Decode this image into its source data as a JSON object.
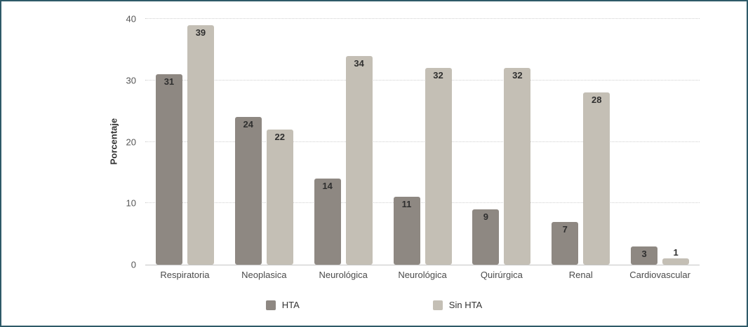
{
  "chart_data": {
    "type": "bar",
    "categories": [
      "Respiratoria",
      "Neoplasica",
      "Neurológica",
      "Neurológica",
      "Quirúrgica",
      "Renal",
      "Cardiovascular"
    ],
    "series": [
      {
        "name": "HTA",
        "color": "#8e8882",
        "values": [
          31,
          24,
          14,
          11,
          9,
          7,
          3
        ]
      },
      {
        "name": "Sin HTA",
        "color": "#c4bfb5",
        "values": [
          39,
          22,
          34,
          32,
          32,
          28,
          1
        ]
      }
    ],
    "title": "",
    "xlabel": "",
    "ylabel": "Porcentaje",
    "ylim": [
      0,
      40
    ],
    "yticks": [
      0,
      10,
      20,
      30,
      40
    ],
    "grid": "horizontal-dotted",
    "legend_position": "bottom",
    "frame_border_color": "#2e5a68",
    "label_color": "#2f2f2f"
  }
}
